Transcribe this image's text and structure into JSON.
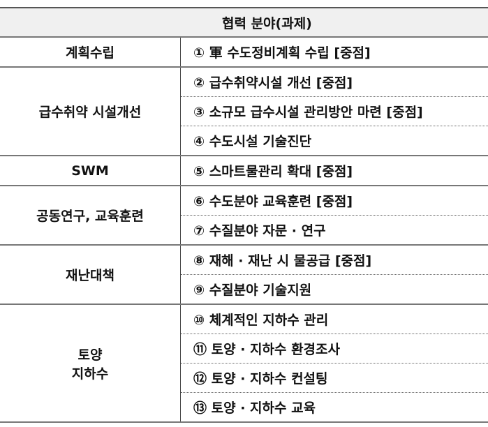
{
  "header": "협력 분야(과제)",
  "groups": [
    {
      "category": "계획수립",
      "items": [
        "① 軍 수도정비계획 수립 [중점]"
      ]
    },
    {
      "category": "급수취약 시설개선",
      "items": [
        "② 급수취약시설 개선 [중점]",
        "③ 소규모 급수시설 관리방안 마련 [중점]",
        "④ 수도시설 기술진단"
      ]
    },
    {
      "category": "SWM",
      "items": [
        "⑤ 스마트물관리 확대 [중점]"
      ]
    },
    {
      "category": "공동연구, 교육훈련",
      "items": [
        "⑥ 수도분야 교육훈련 [중점]",
        "⑦ 수질분야 자문 · 연구"
      ]
    },
    {
      "category": "재난대책",
      "items": [
        "⑧ 재해 · 재난 시 물공급 [중점]",
        "⑨ 수질분야 기술지원"
      ]
    },
    {
      "category": "토양\n지하수",
      "items": [
        "⑩ 체계적인 지하수 관리",
        "⑪ 토양 · 지하수 환경조사",
        "⑫ 토양 · 지하수 컨설팅",
        "⑬ 토양 · 지하수 교육"
      ]
    }
  ]
}
